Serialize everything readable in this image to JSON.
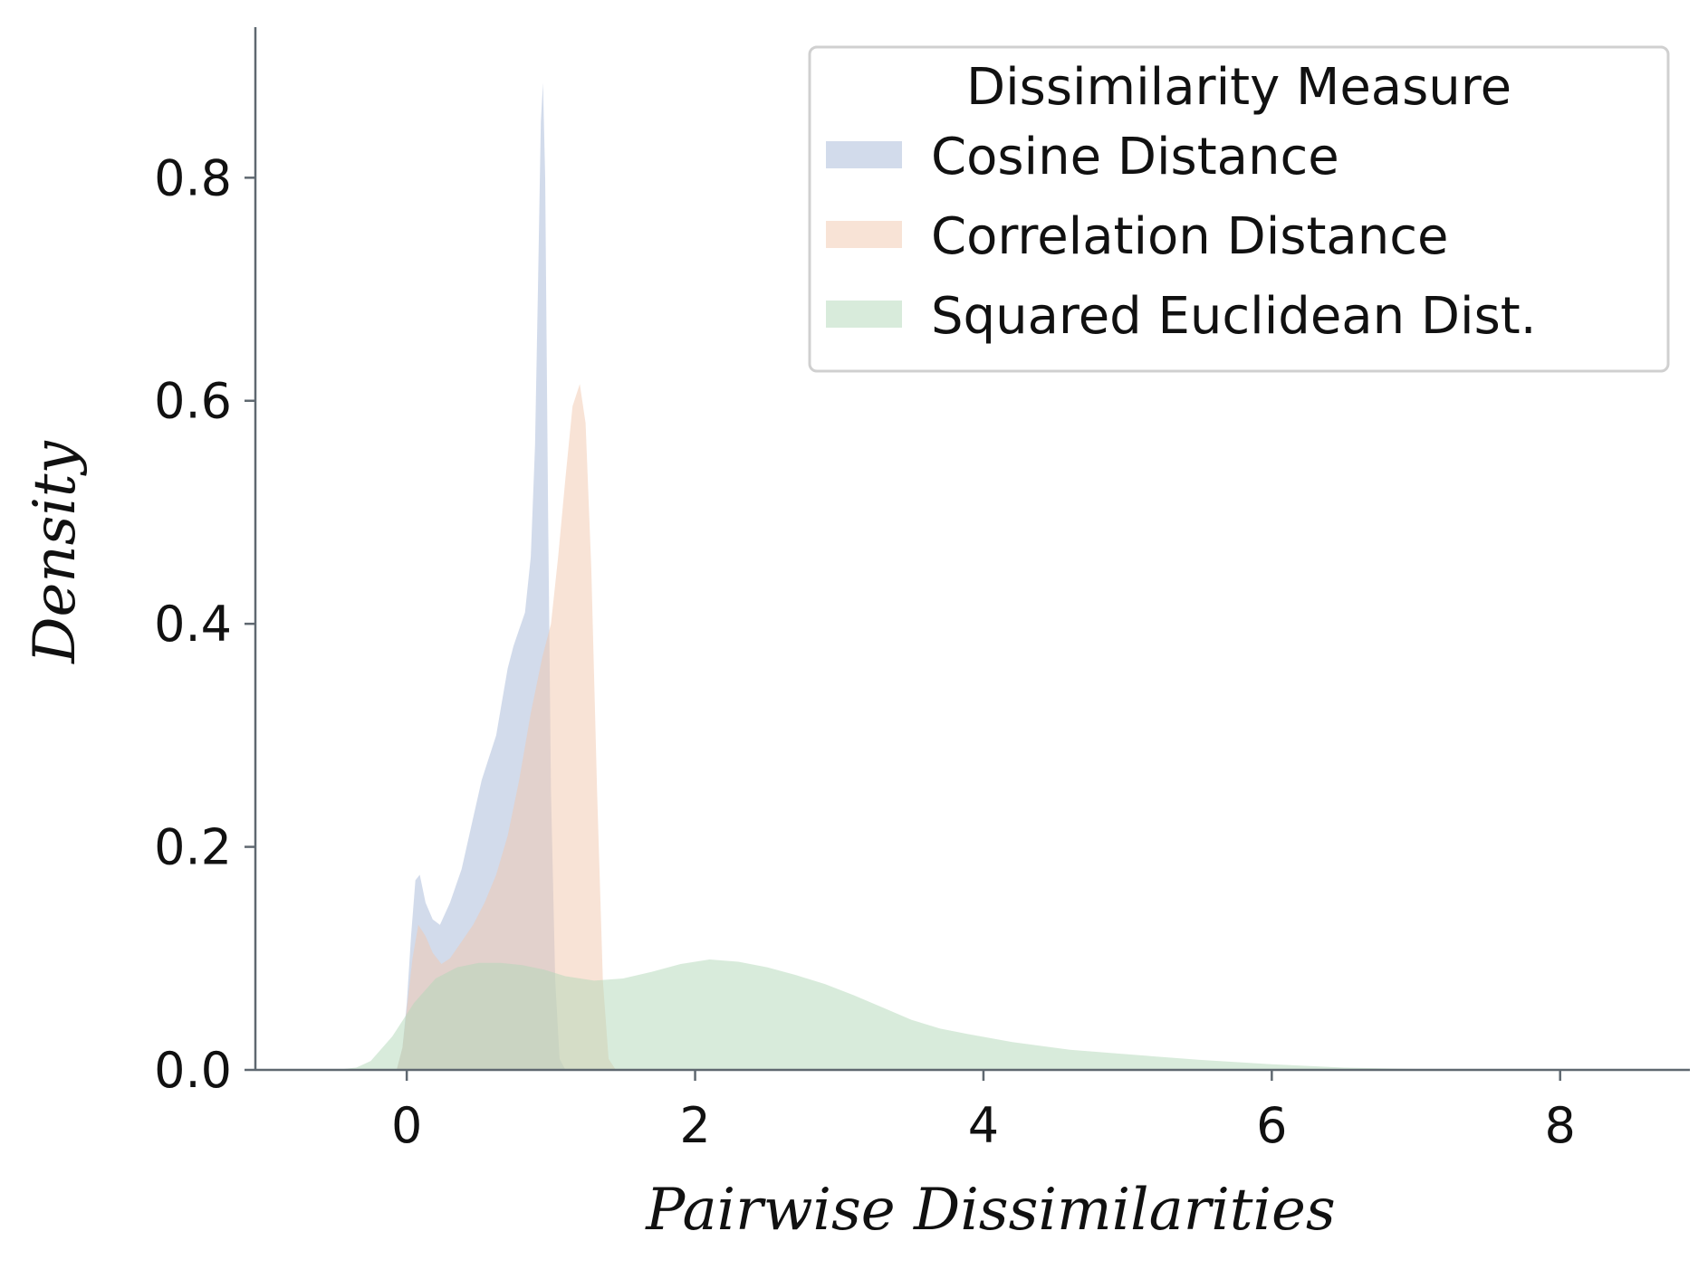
{
  "chart_data": {
    "type": "area",
    "title": "",
    "xlabel": "Pairwise Dissimilarities",
    "ylabel": "Density",
    "xlim": [
      -1.05,
      8.9
    ],
    "ylim": [
      0,
      0.935
    ],
    "x_ticks": [
      0,
      2,
      4,
      6,
      8
    ],
    "x_tick_labels": [
      "0",
      "2",
      "4",
      "6",
      "8"
    ],
    "y_ticks": [
      0.0,
      0.2,
      0.4,
      0.6,
      0.8
    ],
    "y_tick_labels": [
      "0.0",
      "0.2",
      "0.4",
      "0.6",
      "0.8"
    ],
    "grid": false,
    "legend": {
      "title": "Dissimilarity Measure",
      "placement": "top-right"
    },
    "series": [
      {
        "name": "Cosine Distance",
        "color": "#a6b7d8",
        "points": [
          [
            -0.07,
            0
          ],
          [
            -0.03,
            0.02
          ],
          [
            0.0,
            0.06
          ],
          [
            0.03,
            0.12
          ],
          [
            0.06,
            0.17
          ],
          [
            0.09,
            0.175
          ],
          [
            0.13,
            0.15
          ],
          [
            0.18,
            0.135
          ],
          [
            0.23,
            0.13
          ],
          [
            0.3,
            0.15
          ],
          [
            0.38,
            0.18
          ],
          [
            0.45,
            0.22
          ],
          [
            0.52,
            0.26
          ],
          [
            0.57,
            0.28
          ],
          [
            0.62,
            0.3
          ],
          [
            0.66,
            0.33
          ],
          [
            0.7,
            0.36
          ],
          [
            0.74,
            0.38
          ],
          [
            0.78,
            0.395
          ],
          [
            0.82,
            0.41
          ],
          [
            0.86,
            0.46
          ],
          [
            0.89,
            0.56
          ],
          [
            0.91,
            0.7
          ],
          [
            0.93,
            0.85
          ],
          [
            0.945,
            0.885
          ],
          [
            0.96,
            0.8
          ],
          [
            0.98,
            0.5
          ],
          [
            1.0,
            0.25
          ],
          [
            1.03,
            0.08
          ],
          [
            1.06,
            0.01
          ],
          [
            1.1,
            0
          ]
        ]
      },
      {
        "name": "Correlation Distance",
        "color": "#f1c7ae",
        "points": [
          [
            -0.07,
            0
          ],
          [
            -0.03,
            0.02
          ],
          [
            0.0,
            0.055
          ],
          [
            0.04,
            0.1
          ],
          [
            0.08,
            0.13
          ],
          [
            0.13,
            0.12
          ],
          [
            0.18,
            0.105
          ],
          [
            0.24,
            0.095
          ],
          [
            0.3,
            0.1
          ],
          [
            0.38,
            0.115
          ],
          [
            0.46,
            0.13
          ],
          [
            0.54,
            0.15
          ],
          [
            0.62,
            0.175
          ],
          [
            0.7,
            0.21
          ],
          [
            0.78,
            0.26
          ],
          [
            0.86,
            0.32
          ],
          [
            0.94,
            0.37
          ],
          [
            1.0,
            0.4
          ],
          [
            1.05,
            0.46
          ],
          [
            1.1,
            0.53
          ],
          [
            1.15,
            0.595
          ],
          [
            1.2,
            0.615
          ],
          [
            1.24,
            0.58
          ],
          [
            1.28,
            0.45
          ],
          [
            1.32,
            0.25
          ],
          [
            1.36,
            0.08
          ],
          [
            1.4,
            0.01
          ],
          [
            1.45,
            0
          ]
        ]
      },
      {
        "name": "Squared Euclidean Dist.",
        "color": "#b1d8b7",
        "points": [
          [
            -0.5,
            0
          ],
          [
            -0.35,
            0.002
          ],
          [
            -0.25,
            0.008
          ],
          [
            -0.1,
            0.03
          ],
          [
            0.05,
            0.06
          ],
          [
            0.2,
            0.082
          ],
          [
            0.35,
            0.092
          ],
          [
            0.5,
            0.096
          ],
          [
            0.65,
            0.096
          ],
          [
            0.8,
            0.094
          ],
          [
            0.95,
            0.09
          ],
          [
            1.1,
            0.084
          ],
          [
            1.3,
            0.08
          ],
          [
            1.5,
            0.082
          ],
          [
            1.7,
            0.088
          ],
          [
            1.9,
            0.095
          ],
          [
            2.1,
            0.099
          ],
          [
            2.3,
            0.097
          ],
          [
            2.5,
            0.092
          ],
          [
            2.7,
            0.085
          ],
          [
            2.9,
            0.077
          ],
          [
            3.1,
            0.067
          ],
          [
            3.3,
            0.056
          ],
          [
            3.5,
            0.045
          ],
          [
            3.7,
            0.037
          ],
          [
            3.9,
            0.032
          ],
          [
            4.2,
            0.025
          ],
          [
            4.6,
            0.018
          ],
          [
            5.0,
            0.014
          ],
          [
            5.5,
            0.009
          ],
          [
            6.0,
            0.005
          ],
          [
            6.5,
            0.002
          ],
          [
            7.0,
            0.0008
          ],
          [
            7.5,
            0.0003
          ],
          [
            8.0,
            0.0001
          ],
          [
            8.4,
            0
          ]
        ]
      }
    ]
  }
}
